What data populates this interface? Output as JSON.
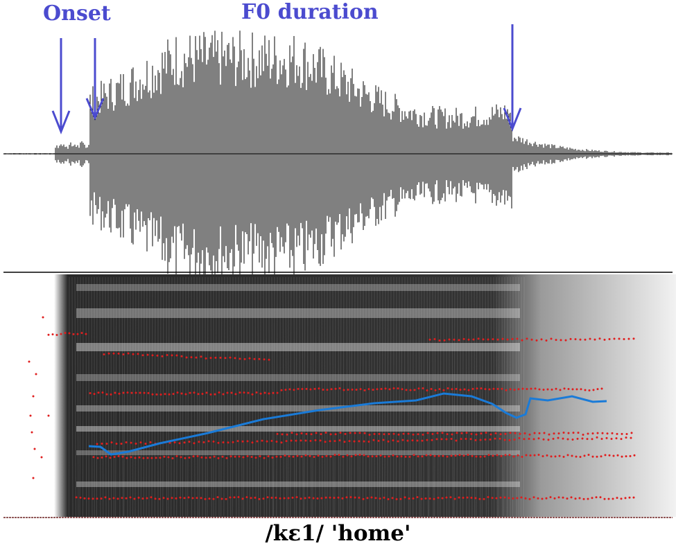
{
  "labels": {
    "onset": "Onset",
    "f0_duration": "F0 duration"
  },
  "caption": "/kɛ1/ 'home'",
  "colors": {
    "annotation": "#4b4bcf",
    "pitch_track": "#1a7bd8",
    "formant_dots": "#e01e1e",
    "waveform": "#000000"
  },
  "panels": [
    "waveform",
    "spectrogram"
  ]
}
